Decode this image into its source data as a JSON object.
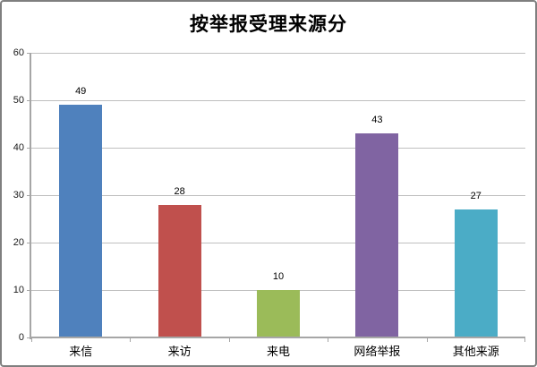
{
  "chart_data": {
    "type": "bar",
    "title": "按举报受理来源分",
    "categories": [
      "来信",
      "来访",
      "来电",
      "网络举报",
      "其他来源"
    ],
    "values": [
      49,
      28,
      10,
      43,
      27
    ],
    "bar_colors": [
      "#4F81BD",
      "#C0504D",
      "#9BBB59",
      "#8064A2",
      "#4BACC6"
    ],
    "data_labels": [
      49,
      28,
      10,
      43,
      27
    ],
    "xlabel": "",
    "ylabel": "",
    "ylim": [
      0,
      60
    ],
    "yticks": [
      0,
      10,
      20,
      30,
      40,
      50,
      60
    ],
    "grid": "horizontal",
    "legend_position": "none",
    "colors": {
      "axis": "#A6A6A6",
      "gridline": "#BFBFBF",
      "chart_border": "#7F7F7F",
      "background": "#FFFFFF",
      "title_text": "#000000",
      "tick_text": "#1A1A1A",
      "label_text": "#000000"
    }
  }
}
